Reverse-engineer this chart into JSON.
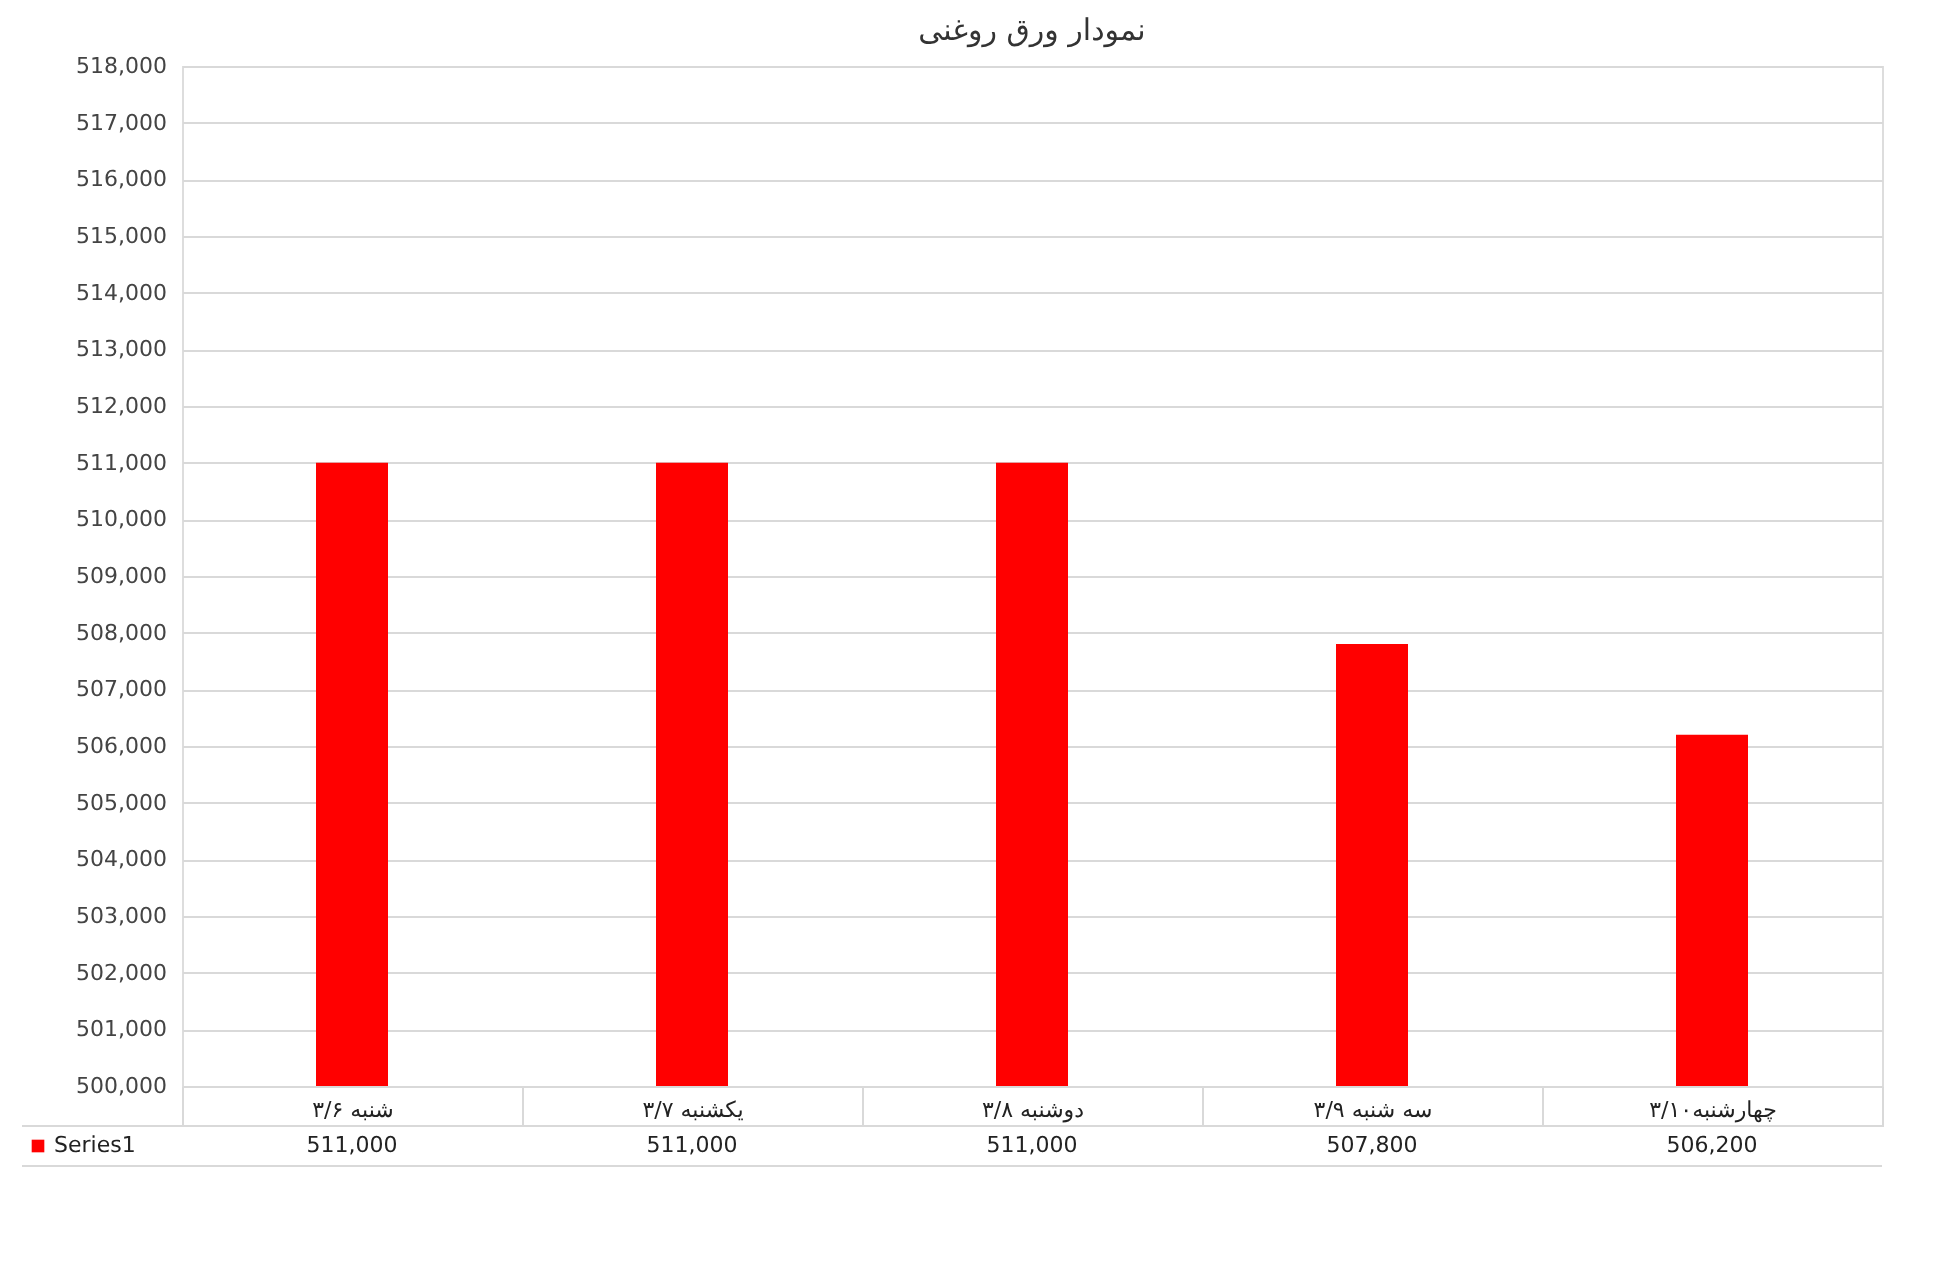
{
  "chart_data": {
    "type": "bar",
    "title": "نمودار ورق روغنی",
    "categories": [
      "شنبه ۳/۶",
      "یکشنبه ۳/۷",
      "دوشنبه ۳/۸",
      "سه شنبه ۳/۹",
      "چهارشنبه۳/۱۰"
    ],
    "series": [
      {
        "name": "Series1",
        "color": "#ff0000",
        "values": [
          511000,
          511000,
          511000,
          507800,
          506200
        ],
        "value_labels": [
          "511,000",
          "511,000",
          "511,000",
          "507,800",
          "506,200"
        ]
      }
    ],
    "ylim": [
      500000,
      518000
    ],
    "yticks": [
      {
        "value": 500000,
        "label": "500,000"
      },
      {
        "value": 501000,
        "label": "501,000"
      },
      {
        "value": 502000,
        "label": "502,000"
      },
      {
        "value": 503000,
        "label": "503,000"
      },
      {
        "value": 504000,
        "label": "504,000"
      },
      {
        "value": 505000,
        "label": "505,000"
      },
      {
        "value": 506000,
        "label": "506,000"
      },
      {
        "value": 507000,
        "label": "507,000"
      },
      {
        "value": 508000,
        "label": "508,000"
      },
      {
        "value": 509000,
        "label": "509,000"
      },
      {
        "value": 510000,
        "label": "510,000"
      },
      {
        "value": 511000,
        "label": "511,000"
      },
      {
        "value": 512000,
        "label": "512,000"
      },
      {
        "value": 513000,
        "label": "513,000"
      },
      {
        "value": 514000,
        "label": "514,000"
      },
      {
        "value": 515000,
        "label": "515,000"
      },
      {
        "value": 516000,
        "label": "516,000"
      },
      {
        "value": 517000,
        "label": "517,000"
      },
      {
        "value": 518000,
        "label": "518,000"
      }
    ],
    "grid": "y",
    "legend": "bottom"
  }
}
